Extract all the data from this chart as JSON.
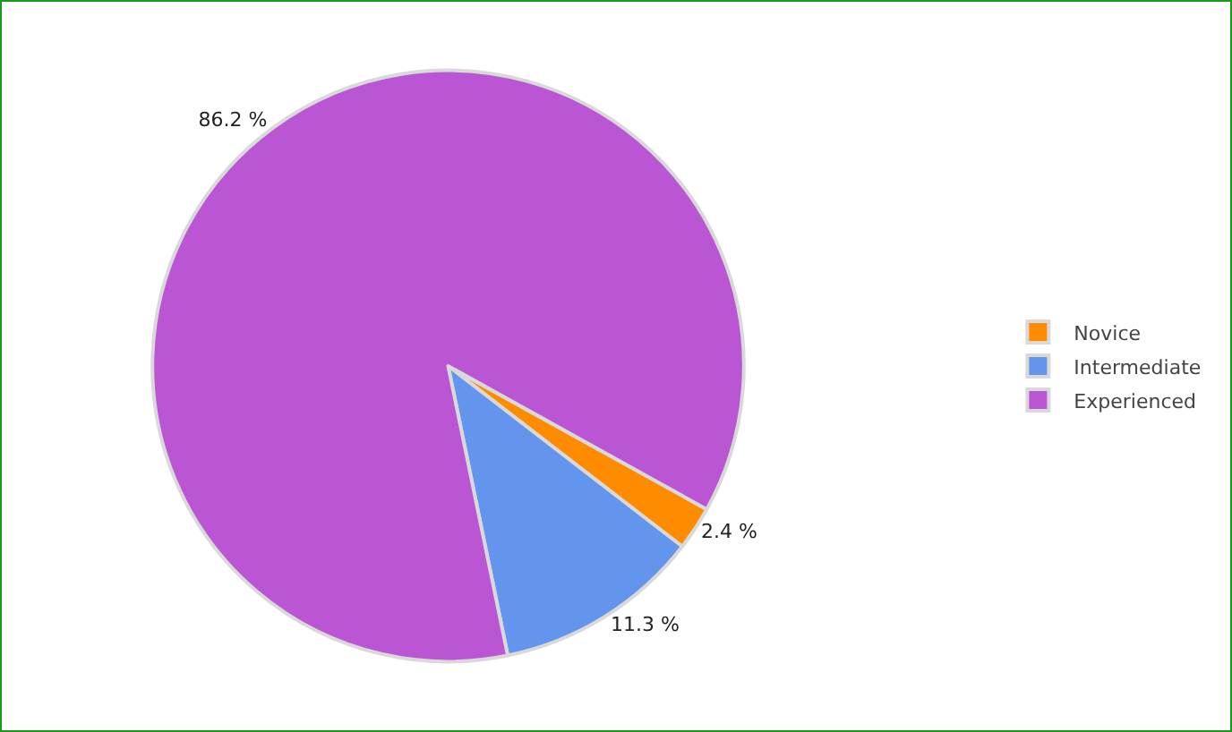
{
  "chart_data": {
    "type": "pie",
    "categories": [
      "Novice",
      "Intermediate",
      "Experienced"
    ],
    "values": [
      2.4,
      11.3,
      86.2
    ],
    "value_labels": [
      "2.4 %",
      "11.3 %",
      "86.2 %"
    ],
    "colors": [
      "#ff8c00",
      "#6495ed",
      "#ba55d3"
    ],
    "legend": "right"
  }
}
